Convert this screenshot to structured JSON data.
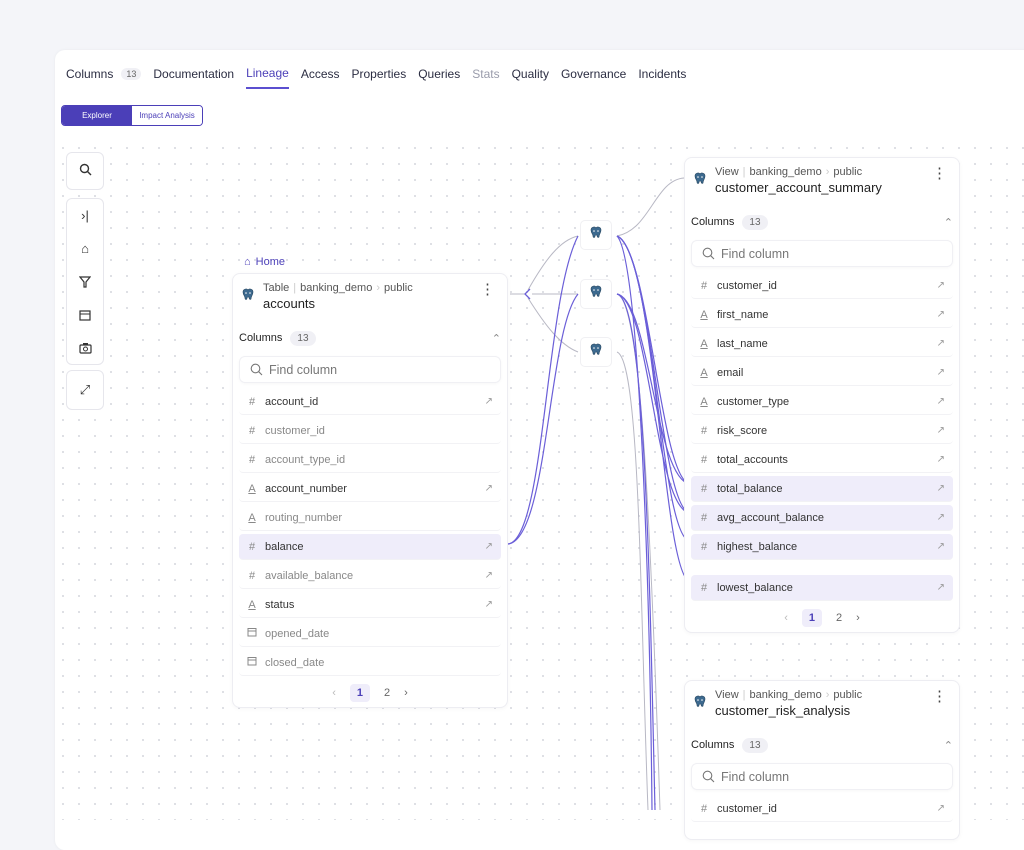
{
  "tabs": [
    {
      "label": "Columns",
      "badge": "13"
    },
    {
      "label": "Documentation"
    },
    {
      "label": "Lineage",
      "active": true
    },
    {
      "label": "Access"
    },
    {
      "label": "Properties"
    },
    {
      "label": "Queries"
    },
    {
      "label": "Stats",
      "muted": true
    },
    {
      "label": "Quality"
    },
    {
      "label": "Governance"
    },
    {
      "label": "Incidents"
    }
  ],
  "view_toggle": {
    "explorer": "Explorer",
    "impact": "Impact Analysis",
    "selected": "Explorer"
  },
  "toolbar": [
    "search-icon",
    "collapse-right-icon",
    "home-icon",
    "filter-icon",
    "calendar-icon",
    "camera-icon",
    "expand-icon"
  ],
  "accent": "#4b3fb8",
  "home_label": "Home",
  "accounts": {
    "type": "Table",
    "db": "banking_demo",
    "schema": "public",
    "name": "accounts",
    "columns_label": "Columns",
    "count": "13",
    "find_placeholder": "Find column",
    "rows": [
      {
        "name": "account_id",
        "icon": "#",
        "style": "bold",
        "link": true
      },
      {
        "name": "customer_id",
        "icon": "#",
        "style": "light",
        "link": false
      },
      {
        "name": "account_type_id",
        "icon": "#",
        "style": "light",
        "link": false
      },
      {
        "name": "account_number",
        "icon": "A",
        "style": "bold",
        "link": true
      },
      {
        "name": "routing_number",
        "icon": "A",
        "style": "light",
        "link": false
      },
      {
        "name": "balance",
        "icon": "#",
        "style": "hl",
        "link": true
      },
      {
        "name": "available_balance",
        "icon": "#",
        "style": "light",
        "link": true
      },
      {
        "name": "status",
        "icon": "A",
        "style": "bold",
        "link": true
      },
      {
        "name": "opened_date",
        "icon": "cal",
        "style": "light",
        "link": false
      },
      {
        "name": "closed_date",
        "icon": "cal",
        "style": "light",
        "link": false
      }
    ],
    "pages": [
      "1",
      "2"
    ],
    "current_page": "1"
  },
  "summary": {
    "type": "View",
    "db": "banking_demo",
    "schema": "public",
    "name": "customer_account_summary",
    "columns_label": "Columns",
    "count": "13",
    "find_placeholder": "Find column",
    "rows": [
      {
        "name": "customer_id",
        "icon": "#",
        "style": "bold",
        "link": true
      },
      {
        "name": "first_name",
        "icon": "A",
        "style": "bold",
        "link": true
      },
      {
        "name": "last_name",
        "icon": "A",
        "style": "bold",
        "link": true
      },
      {
        "name": "email",
        "icon": "A",
        "style": "bold",
        "link": true
      },
      {
        "name": "customer_type",
        "icon": "A",
        "style": "bold",
        "link": true
      },
      {
        "name": "risk_score",
        "icon": "#",
        "style": "bold",
        "link": true
      },
      {
        "name": "total_accounts",
        "icon": "#",
        "style": "bold",
        "link": true
      },
      {
        "name": "total_balance",
        "icon": "#",
        "style": "hl",
        "link": true
      },
      {
        "name": "avg_account_balance",
        "icon": "#",
        "style": "hl",
        "link": true
      },
      {
        "name": "highest_balance",
        "icon": "#",
        "style": "hl",
        "link": true
      },
      {
        "name": "lowest_balance",
        "icon": "#",
        "style": "hl",
        "link": true
      }
    ],
    "pages": [
      "1",
      "2"
    ],
    "current_page": "1"
  },
  "risk": {
    "type": "View",
    "db": "banking_demo",
    "schema": "public",
    "name": "customer_risk_analysis",
    "columns_label": "Columns",
    "count": "13",
    "find_placeholder": "Find column",
    "rows": [
      {
        "name": "customer_id",
        "icon": "#",
        "style": "bold",
        "link": true
      }
    ]
  }
}
